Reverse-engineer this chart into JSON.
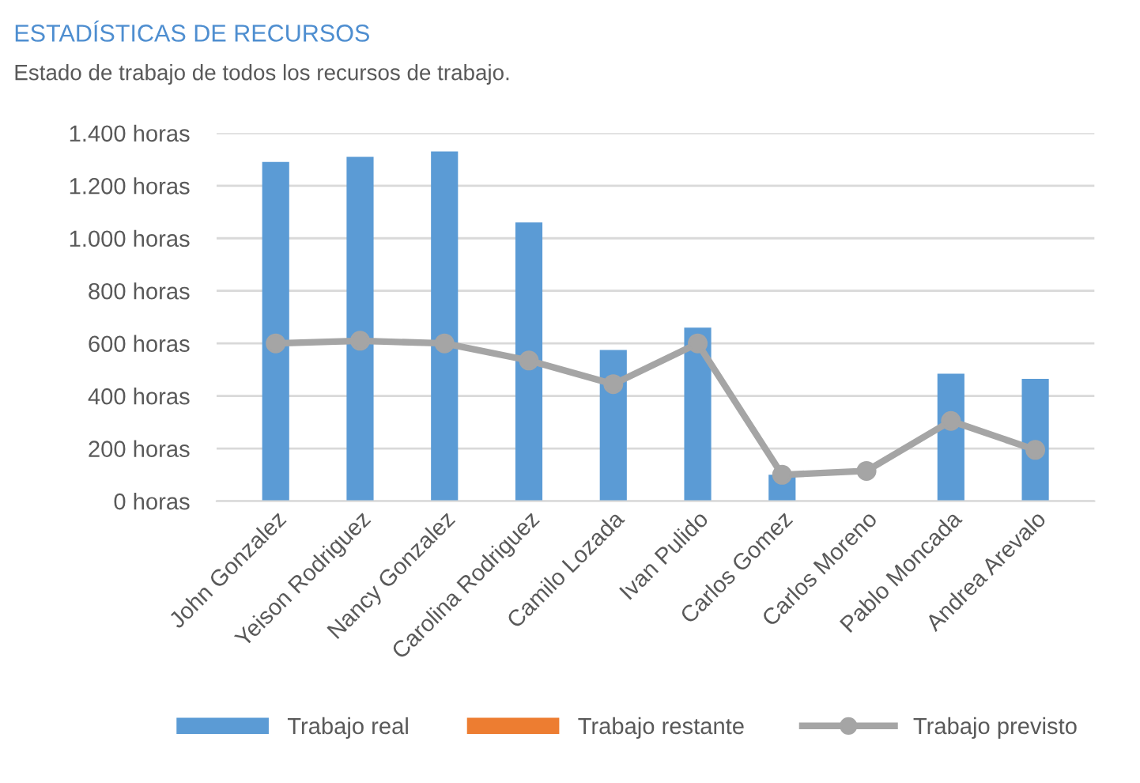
{
  "chart_data": {
    "type": "bar",
    "title": "ESTADÍSTICAS DE RECURSOS",
    "subtitle": "Estado de trabajo de todos los recursos de trabajo.",
    "categories": [
      "John Gonzalez",
      "Yeison Rodriguez",
      "Nancy Gonzalez",
      "Carolina Rodriguez",
      "Camilo Lozada",
      "Ivan Pulido",
      "Carlos Gomez",
      "Carlos Moreno",
      "Pablo Moncada",
      "Andrea Arevalo"
    ],
    "series": [
      {
        "name": "Trabajo real",
        "color": "#5b9bd5",
        "values": [
          1290,
          1310,
          1330,
          1060,
          575,
          660,
          100,
          0,
          485,
          465
        ]
      },
      {
        "name": "Trabajo restante",
        "color": "#ed7d31",
        "values": [
          null,
          null,
          null,
          null,
          null,
          null,
          null,
          null,
          null,
          null
        ]
      },
      {
        "name": "Trabajo previsto",
        "type": "line",
        "color": "#a5a5a5",
        "marker": "circle",
        "values": [
          600,
          610,
          600,
          535,
          445,
          600,
          100,
          115,
          305,
          195
        ]
      }
    ],
    "stacked": true,
    "ylim": [
      0,
      1400
    ],
    "yticks": [
      {
        "value": 0,
        "label": "0 horas"
      },
      {
        "value": 200,
        "label": "200 horas"
      },
      {
        "value": 400,
        "label": "400 horas"
      },
      {
        "value": 600,
        "label": "600 horas"
      },
      {
        "value": 800,
        "label": "800 horas"
      },
      {
        "value": 1000,
        "label": "1.000 horas"
      },
      {
        "value": 1200,
        "label": "1.200 horas"
      },
      {
        "value": 1400,
        "label": "1.400 horas"
      }
    ],
    "grid": "y",
    "legend": "bottom"
  }
}
